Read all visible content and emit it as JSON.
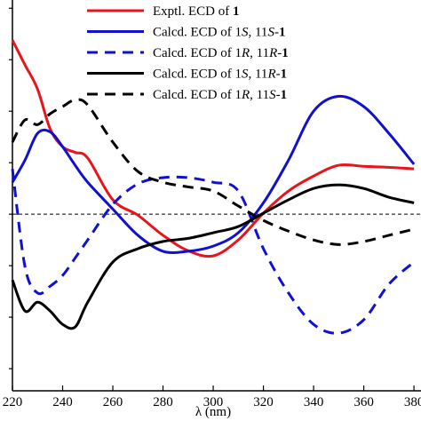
{
  "chart_data": {
    "type": "line",
    "x_label": "λ (nm)",
    "x": [
      220,
      225,
      230,
      235,
      240,
      245,
      250,
      260,
      270,
      280,
      290,
      300,
      310,
      320,
      330,
      340,
      350,
      360,
      370,
      380
    ],
    "xlim": [
      220,
      382.8
    ],
    "xticks": [
      220,
      240,
      260,
      280,
      300,
      320,
      340,
      360,
      380
    ],
    "ylim": [
      -3.43,
      4.16
    ],
    "yticks": [
      -3,
      -2,
      -1,
      0,
      1,
      2,
      3,
      4
    ],
    "zero_line": true,
    "series": [
      {
        "name": "Exptl. ECD of 1",
        "color": "#e8141b",
        "dash": false,
        "values": [
          3.38,
          2.9,
          2.43,
          1.66,
          1.31,
          1.2,
          1.09,
          0.28,
          -0.02,
          -0.41,
          -0.71,
          -0.81,
          -0.5,
          0.02,
          0.45,
          0.74,
          0.95,
          0.93,
          0.91,
          0.88
        ]
      },
      {
        "name": "Calcd. ECD of 1S, 11S-1",
        "color": "#1010d0",
        "dash": false,
        "values": [
          0.62,
          1.05,
          1.57,
          1.6,
          1.31,
          0.95,
          0.62,
          0.1,
          -0.41,
          -0.72,
          -0.72,
          -0.62,
          -0.36,
          0.22,
          1.05,
          2.0,
          2.29,
          2.09,
          1.57,
          0.97
        ]
      },
      {
        "name": "Calcd. ECD of 1R, 11R-1",
        "color": "#1010d0",
        "dash": true,
        "values": [
          0.88,
          -1.02,
          -1.53,
          -1.4,
          -1.19,
          -0.85,
          -0.5,
          0.19,
          0.59,
          0.71,
          0.71,
          0.62,
          0.45,
          -0.67,
          -1.53,
          -2.14,
          -2.31,
          -2.05,
          -1.36,
          -0.93
        ]
      },
      {
        "name": "Calcd. ECD of 1S, 11R-1",
        "color": "#000000",
        "dash": false,
        "values": [
          -1.28,
          -1.88,
          -1.71,
          -1.88,
          -2.14,
          -2.19,
          -1.71,
          -0.93,
          -0.67,
          -0.53,
          -0.47,
          -0.36,
          -0.24,
          0.02,
          0.28,
          0.5,
          0.57,
          0.5,
          0.33,
          0.22
        ]
      },
      {
        "name": "Calcd. ECD of 1R, 11S-1",
        "color": "#000000",
        "dash": true,
        "values": [
          1.4,
          1.83,
          1.74,
          1.95,
          2.09,
          2.22,
          2.12,
          1.4,
          0.83,
          0.62,
          0.53,
          0.45,
          0.16,
          -0.12,
          -0.33,
          -0.5,
          -0.59,
          -0.53,
          -0.41,
          -0.29
        ]
      }
    ]
  }
}
